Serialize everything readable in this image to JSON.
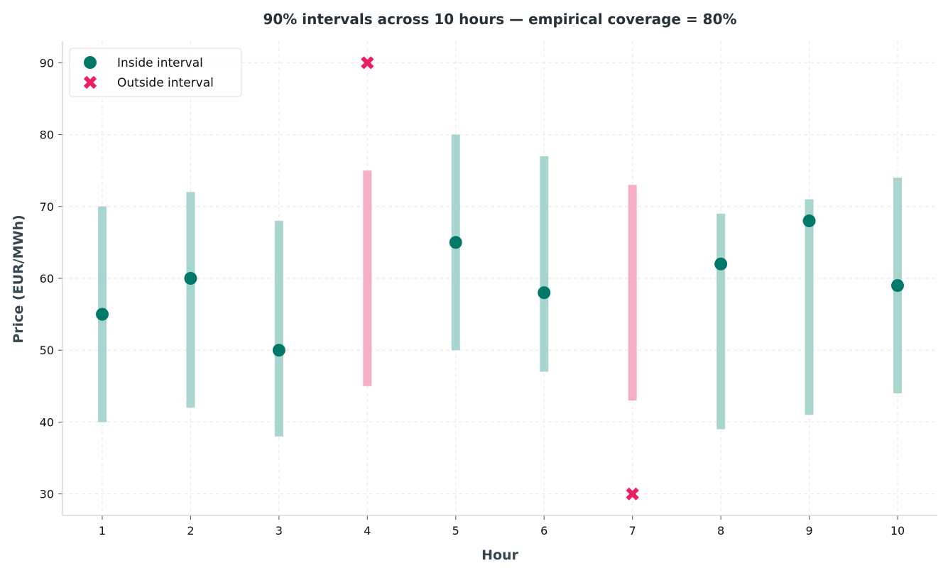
{
  "chart_data": {
    "type": "scatter",
    "title": "90% intervals across 10 hours — empirical coverage = 80%",
    "xlabel": "Hour",
    "ylabel": "Price (EUR/MWh)",
    "xlim": [
      0.55,
      10.45
    ],
    "ylim": [
      27,
      93
    ],
    "x_ticks": [
      "1",
      "2",
      "3",
      "4",
      "5",
      "6",
      "7",
      "8",
      "9",
      "10"
    ],
    "y_ticks": [
      "30",
      "40",
      "50",
      "60",
      "70",
      "80",
      "90"
    ],
    "grid": true,
    "legend": {
      "placement": "top-left",
      "entries": [
        {
          "label": "Inside interval",
          "marker": "circle",
          "color": "#00796b"
        },
        {
          "label": "Outside interval",
          "marker": "x",
          "color": "#e91e63"
        }
      ]
    },
    "colors": {
      "inside_point": "#00796b",
      "inside_interval": "#a8d5ce",
      "outside_point": "#e91e63",
      "outside_interval": "#f4afc6"
    },
    "points": [
      {
        "hour": 1,
        "value": 55,
        "lower": 40,
        "upper": 70,
        "inside": true
      },
      {
        "hour": 2,
        "value": 60,
        "lower": 42,
        "upper": 72,
        "inside": true
      },
      {
        "hour": 3,
        "value": 50,
        "lower": 38,
        "upper": 68,
        "inside": true
      },
      {
        "hour": 4,
        "value": 90,
        "lower": 45,
        "upper": 75,
        "inside": false
      },
      {
        "hour": 5,
        "value": 65,
        "lower": 50,
        "upper": 80,
        "inside": true
      },
      {
        "hour": 6,
        "value": 58,
        "lower": 47,
        "upper": 77,
        "inside": true
      },
      {
        "hour": 7,
        "value": 30,
        "lower": 43,
        "upper": 73,
        "inside": false
      },
      {
        "hour": 8,
        "value": 62,
        "lower": 39,
        "upper": 69,
        "inside": true
      },
      {
        "hour": 9,
        "value": 68,
        "lower": 41,
        "upper": 71,
        "inside": true
      },
      {
        "hour": 10,
        "value": 59,
        "lower": 44,
        "upper": 74,
        "inside": true
      }
    ]
  }
}
